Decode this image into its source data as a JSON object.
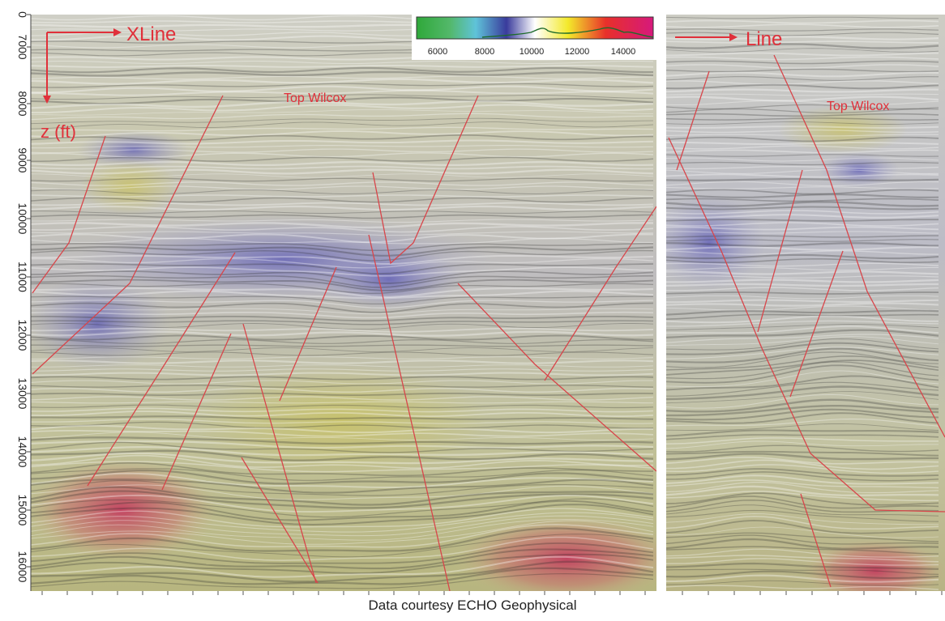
{
  "labels": {
    "xline": "XLine",
    "line": "Line",
    "z_axis": "z (ft)",
    "top_wilcox_left": "Top Wilcox",
    "top_wilcox_right": "Top Wilcox",
    "credit": "Data courtesy ECHO Geophysical"
  },
  "depth_axis": {
    "ticks": [
      "0",
      "7000",
      "8000",
      "9000",
      "10000",
      "11000",
      "12000",
      "13000",
      "14000",
      "15000",
      "16000"
    ]
  },
  "colorbar": {
    "ticks": [
      "6000",
      "8000",
      "10000",
      "12000",
      "14000"
    ],
    "colors": [
      "#2fa83a",
      "#5fc3d9",
      "#3a3b9c",
      "#ffffff",
      "#f3e92a",
      "#e8302a",
      "#d6197c"
    ]
  },
  "colors": {
    "annotation": "#e0303a",
    "fault": "#d8454a"
  }
}
